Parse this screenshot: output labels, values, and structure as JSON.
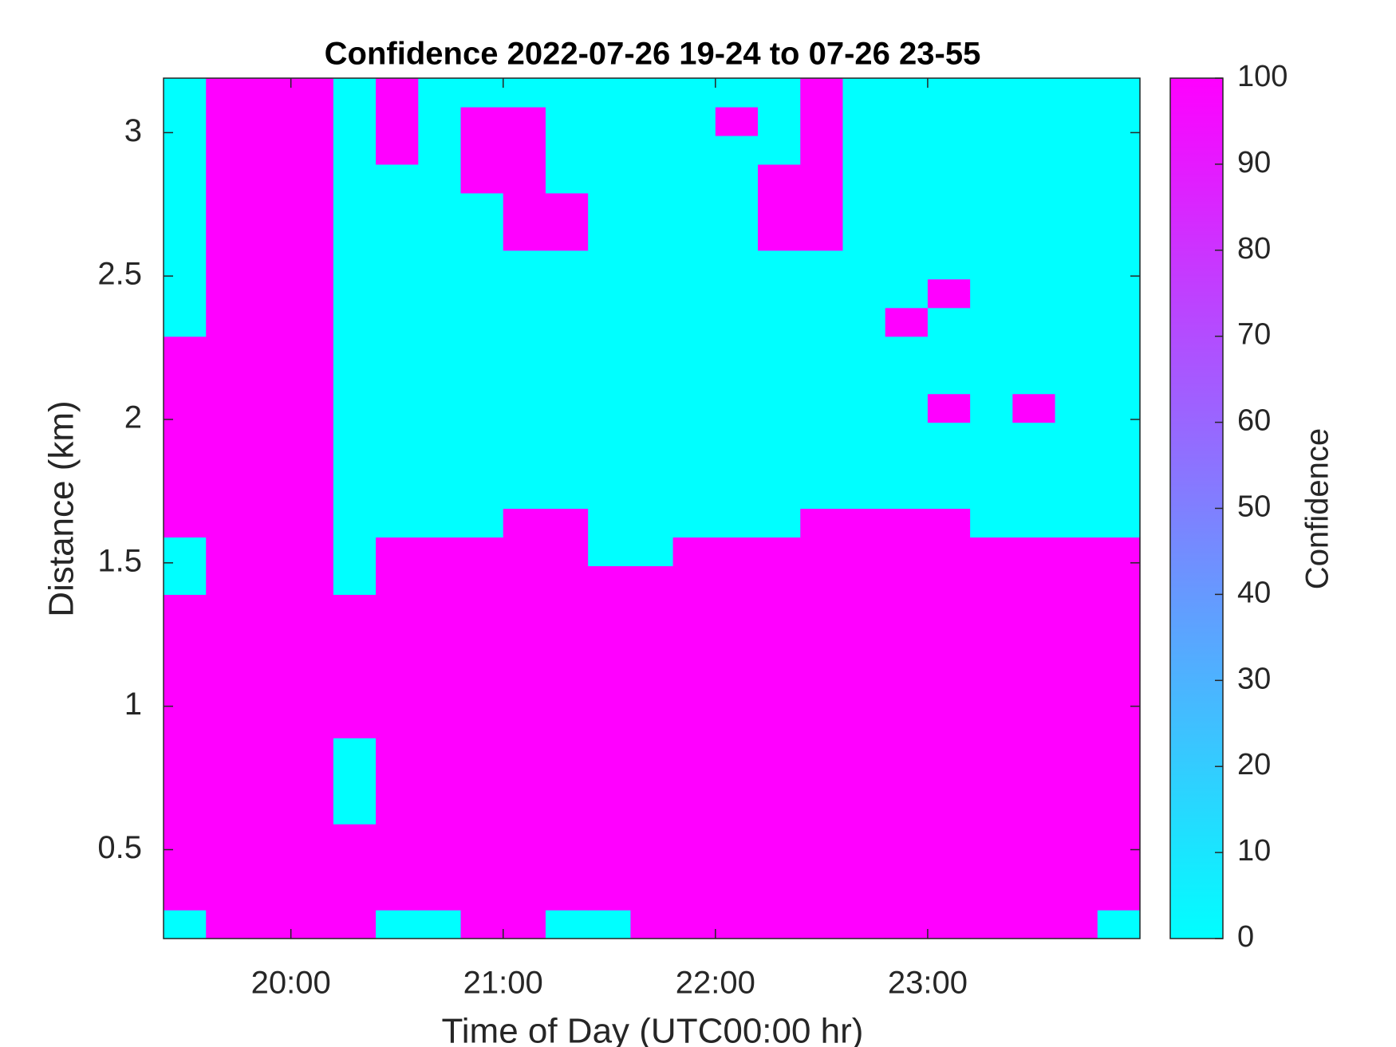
{
  "chart_data": {
    "type": "heatmap",
    "title": "Confidence 2022-07-26 19-24 to 07-26 23-55",
    "x_label": "Time of Day (UTC00:00 hr)",
    "y_label": "Distance (km)",
    "colorbar_label": "Confidence",
    "colormap": [
      "#00ffff",
      "#ff00ff"
    ],
    "xlim": [
      19.4,
      24.0
    ],
    "xticks": [
      {
        "value": 20,
        "label": "20:00"
      },
      {
        "value": 21,
        "label": "21:00"
      },
      {
        "value": 22,
        "label": "22:00"
      },
      {
        "value": 23,
        "label": "23:00"
      }
    ],
    "ylim": [
      0.19,
      3.19
    ],
    "yticks": [
      0.5,
      1,
      1.5,
      2,
      2.5,
      3
    ],
    "clim": [
      0,
      100
    ],
    "cticks": [
      0,
      10,
      20,
      30,
      40,
      50,
      60,
      70,
      80,
      90,
      100
    ],
    "z": [
      [
        0,
        100,
        100,
        100,
        100,
        0,
        0,
        100,
        100,
        0,
        0,
        100,
        100,
        100,
        100,
        100,
        100,
        100,
        100,
        100,
        100,
        100,
        0
      ],
      [
        100,
        100,
        100,
        100,
        100,
        100,
        100,
        100,
        100,
        100,
        100,
        100,
        100,
        100,
        100,
        100,
        100,
        100,
        100,
        100,
        100,
        100,
        100
      ],
      [
        100,
        100,
        100,
        100,
        100,
        100,
        100,
        100,
        100,
        100,
        100,
        100,
        100,
        100,
        100,
        100,
        100,
        100,
        100,
        100,
        100,
        100,
        100
      ],
      [
        100,
        100,
        100,
        100,
        100,
        100,
        100,
        100,
        100,
        100,
        100,
        100,
        100,
        100,
        100,
        100,
        100,
        100,
        100,
        100,
        100,
        100,
        100
      ],
      [
        100,
        100,
        100,
        100,
        0,
        100,
        100,
        100,
        100,
        100,
        100,
        100,
        100,
        100,
        100,
        100,
        100,
        100,
        100,
        100,
        100,
        100,
        100
      ],
      [
        100,
        100,
        100,
        100,
        0,
        100,
        100,
        100,
        100,
        100,
        100,
        100,
        100,
        100,
        100,
        100,
        100,
        100,
        100,
        100,
        100,
        100,
        100
      ],
      [
        100,
        100,
        100,
        100,
        0,
        100,
        100,
        100,
        100,
        100,
        100,
        100,
        100,
        100,
        100,
        100,
        100,
        100,
        100,
        100,
        100,
        100,
        100
      ],
      [
        100,
        100,
        100,
        100,
        100,
        100,
        100,
        100,
        100,
        100,
        100,
        100,
        100,
        100,
        100,
        100,
        100,
        100,
        100,
        100,
        100,
        100,
        100
      ],
      [
        100,
        100,
        100,
        100,
        100,
        100,
        100,
        100,
        100,
        100,
        100,
        100,
        100,
        100,
        100,
        100,
        100,
        100,
        100,
        100,
        100,
        100,
        100
      ],
      [
        100,
        100,
        100,
        100,
        100,
        100,
        100,
        100,
        100,
        100,
        100,
        100,
        100,
        100,
        100,
        100,
        100,
        100,
        100,
        100,
        100,
        100,
        100
      ],
      [
        100,
        100,
        100,
        100,
        100,
        100,
        100,
        100,
        100,
        100,
        100,
        100,
        100,
        100,
        100,
        100,
        100,
        100,
        100,
        100,
        100,
        100,
        100
      ],
      [
        100,
        100,
        100,
        100,
        100,
        100,
        100,
        100,
        100,
        100,
        100,
        100,
        100,
        100,
        100,
        100,
        100,
        100,
        100,
        100,
        100,
        100,
        100
      ],
      [
        0,
        100,
        100,
        100,
        0,
        100,
        100,
        100,
        100,
        100,
        100,
        100,
        100,
        100,
        100,
        100,
        100,
        100,
        100,
        100,
        100,
        100,
        100
      ],
      [
        0,
        100,
        100,
        100,
        0,
        100,
        100,
        100,
        100,
        100,
        0,
        0,
        100,
        100,
        100,
        100,
        100,
        100,
        100,
        100,
        100,
        100,
        100
      ],
      [
        100,
        100,
        100,
        100,
        0,
        0,
        0,
        0,
        100,
        100,
        0,
        0,
        0,
        0,
        0,
        100,
        100,
        100,
        100,
        0,
        0,
        0,
        0
      ],
      [
        100,
        100,
        100,
        100,
        0,
        0,
        0,
        0,
        0,
        0,
        0,
        0,
        0,
        0,
        0,
        0,
        0,
        0,
        0,
        0,
        0,
        0,
        0
      ],
      [
        100,
        100,
        100,
        100,
        0,
        0,
        0,
        0,
        0,
        0,
        0,
        0,
        0,
        0,
        0,
        0,
        0,
        0,
        0,
        0,
        0,
        0,
        0
      ],
      [
        100,
        100,
        100,
        100,
        0,
        0,
        0,
        0,
        0,
        0,
        0,
        0,
        0,
        0,
        0,
        0,
        0,
        0,
        0,
        0,
        0,
        0,
        0
      ],
      [
        100,
        100,
        100,
        100,
        0,
        0,
        0,
        0,
        0,
        0,
        0,
        0,
        0,
        0,
        0,
        0,
        0,
        0,
        100,
        0,
        100,
        0,
        0
      ],
      [
        100,
        100,
        100,
        100,
        0,
        0,
        0,
        0,
        0,
        0,
        0,
        0,
        0,
        0,
        0,
        0,
        0,
        0,
        0,
        0,
        0,
        0,
        0
      ],
      [
        100,
        100,
        100,
        100,
        0,
        0,
        0,
        0,
        0,
        0,
        0,
        0,
        0,
        0,
        0,
        0,
        0,
        0,
        0,
        0,
        0,
        0,
        0
      ],
      [
        0,
        100,
        100,
        100,
        0,
        0,
        0,
        0,
        0,
        0,
        0,
        0,
        0,
        0,
        0,
        0,
        0,
        100,
        0,
        0,
        0,
        0,
        0
      ],
      [
        0,
        100,
        100,
        100,
        0,
        0,
        0,
        0,
        0,
        0,
        0,
        0,
        0,
        0,
        0,
        0,
        0,
        0,
        100,
        0,
        0,
        0,
        0
      ],
      [
        0,
        100,
        100,
        100,
        0,
        0,
        0,
        0,
        0,
        0,
        0,
        0,
        0,
        0,
        0,
        0,
        0,
        0,
        0,
        0,
        0,
        0,
        0
      ],
      [
        0,
        100,
        100,
        100,
        0,
        0,
        0,
        0,
        100,
        100,
        0,
        0,
        0,
        0,
        100,
        100,
        0,
        0,
        0,
        0,
        0,
        0,
        0
      ],
      [
        0,
        100,
        100,
        100,
        0,
        0,
        0,
        0,
        100,
        100,
        0,
        0,
        0,
        0,
        100,
        100,
        0,
        0,
        0,
        0,
        0,
        0,
        0
      ],
      [
        0,
        100,
        100,
        100,
        0,
        0,
        0,
        100,
        100,
        0,
        0,
        0,
        0,
        0,
        100,
        100,
        0,
        0,
        0,
        0,
        0,
        0,
        0
      ],
      [
        0,
        100,
        100,
        100,
        0,
        100,
        0,
        100,
        100,
        0,
        0,
        0,
        0,
        0,
        0,
        100,
        0,
        0,
        0,
        0,
        0,
        0,
        0
      ],
      [
        0,
        100,
        100,
        100,
        0,
        100,
        0,
        100,
        100,
        0,
        0,
        0,
        0,
        100,
        0,
        100,
        0,
        0,
        0,
        0,
        0,
        0,
        0
      ],
      [
        0,
        100,
        100,
        100,
        0,
        100,
        0,
        0,
        0,
        0,
        0,
        0,
        0,
        0,
        0,
        100,
        0,
        0,
        0,
        0,
        0,
        0,
        0
      ]
    ]
  }
}
